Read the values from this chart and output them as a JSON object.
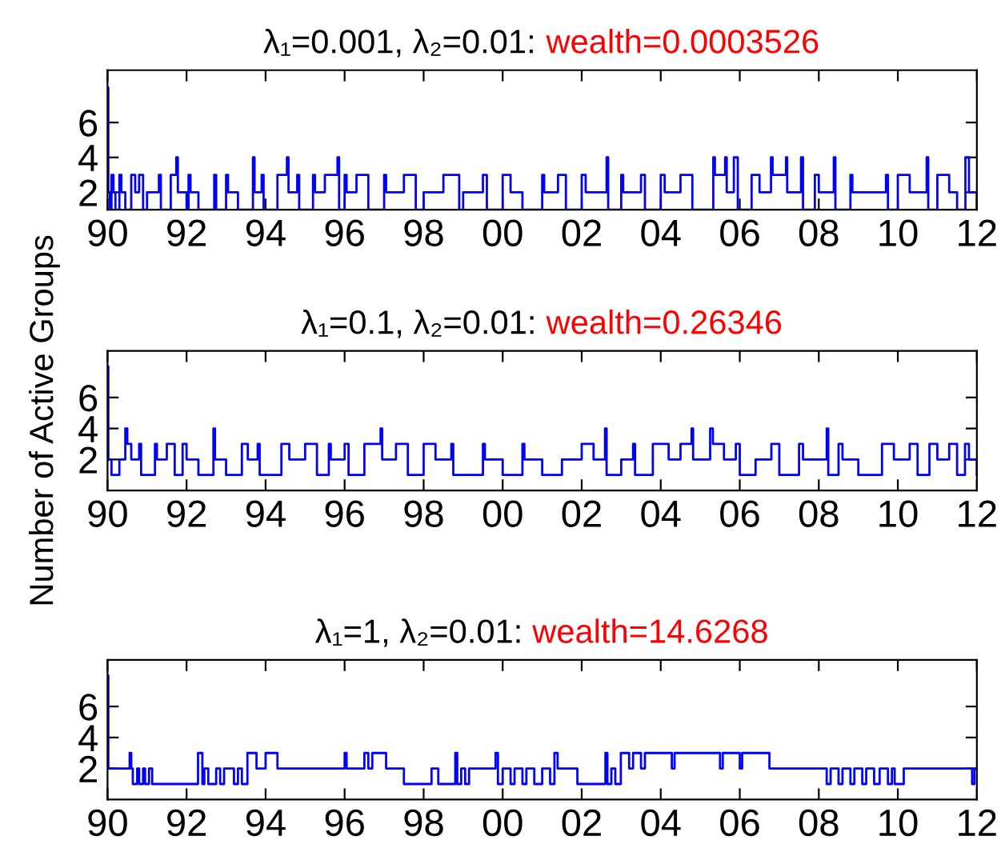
{
  "chart_data": [
    {
      "type": "step",
      "title": "λ₁=0.001, λ₂=0.01: ",
      "subtitle": "wealth=0.0003526",
      "xlim": [
        1990,
        2012
      ],
      "xticks": [
        {
          "value": 1990,
          "label": "90"
        },
        {
          "value": 1992,
          "label": "92"
        },
        {
          "value": 1994,
          "label": "94"
        },
        {
          "value": 1996,
          "label": "96"
        },
        {
          "value": 1998,
          "label": "98"
        },
        {
          "value": 2000,
          "label": "00"
        },
        {
          "value": 2002,
          "label": "02"
        },
        {
          "value": 2004,
          "label": "04"
        },
        {
          "value": 2006,
          "label": "06"
        },
        {
          "value": 2008,
          "label": "08"
        },
        {
          "value": 2010,
          "label": "10"
        },
        {
          "value": 2012,
          "label": "12"
        }
      ],
      "ylim": [
        1,
        9
      ],
      "yticks": [
        2,
        4,
        6
      ],
      "x": [
        1990,
        1990.02,
        1990.06,
        1990.1,
        1990.15,
        1990.2,
        1990.3,
        1990.35,
        1990.45,
        1990.6,
        1990.7,
        1990.8,
        1990.9,
        1991.0,
        1991.3,
        1991.35,
        1991.6,
        1991.74,
        1991.78,
        1992.0,
        1992.05,
        1992.1,
        1992.3,
        1992.7,
        1992.75,
        1993.0,
        1993.05,
        1993.3,
        1993.68,
        1993.72,
        1993.9,
        1993.95,
        1994.3,
        1994.54,
        1994.58,
        1994.8,
        1994.85,
        1995.2,
        1995.25,
        1995.5,
        1995.82,
        1995.86,
        1996.0,
        1996.05,
        1996.3,
        1996.6,
        1997.0,
        1997.05,
        1997.5,
        1997.8,
        1998.0,
        1998.5,
        1998.9,
        1999.0,
        1999.5,
        1999.6,
        2000.0,
        2000.2,
        2000.5,
        2001.0,
        2001.05,
        2001.4,
        2001.6,
        2002.0,
        2002.1,
        2002.63,
        2002.67,
        2003.0,
        2003.05,
        2003.5,
        2003.6,
        2004.0,
        2004.1,
        2004.5,
        2004.8,
        2005.33,
        2005.37,
        2005.63,
        2005.67,
        2005.85,
        2005.95,
        2006.3,
        2006.5,
        2006.79,
        2006.83,
        2007.17,
        2007.2,
        2007.55,
        2007.6,
        2007.9,
        2008.0,
        2008.38,
        2008.42,
        2008.8,
        2008.85,
        2009.7,
        2009.75,
        2010.0,
        2010.3,
        2010.73,
        2010.77,
        2011.0,
        2011.3,
        2011.5,
        2011.71,
        2011.8,
        2012
      ],
      "series": [
        {
          "color": "#0000ff",
          "values": [
            8,
            2,
            1,
            3,
            2,
            1,
            3,
            2,
            1,
            3,
            2,
            3,
            1,
            2,
            3,
            1,
            3,
            4,
            2,
            1,
            3,
            2,
            1,
            3,
            1,
            3,
            2,
            1,
            4,
            2,
            3,
            1,
            3,
            4,
            2,
            3,
            1,
            3,
            2,
            3,
            4,
            1,
            3,
            2,
            3,
            1,
            3,
            2,
            3,
            1,
            2,
            3,
            1,
            2,
            3,
            1,
            3,
            2,
            1,
            3,
            2,
            3,
            1,
            3,
            2,
            4,
            1,
            3,
            2,
            3,
            1,
            3,
            2,
            3,
            1,
            4,
            3,
            4,
            2,
            4,
            1,
            3,
            2,
            4,
            3,
            4,
            2,
            4,
            1,
            3,
            2,
            4,
            1,
            3,
            2,
            3,
            1,
            3,
            2,
            4,
            1,
            3,
            2,
            1,
            4,
            2,
            1
          ]
        }
      ]
    },
    {
      "type": "step",
      "title": "λ₁=0.1, λ₂=0.01: ",
      "subtitle": "wealth=0.26346",
      "ylabel": "Number of Active Groups",
      "xlim": [
        1990,
        2012
      ],
      "xticks": [
        {
          "value": 1990,
          "label": "90"
        },
        {
          "value": 1992,
          "label": "92"
        },
        {
          "value": 1994,
          "label": "94"
        },
        {
          "value": 1996,
          "label": "96"
        },
        {
          "value": 1998,
          "label": "98"
        },
        {
          "value": 2000,
          "label": "00"
        },
        {
          "value": 2002,
          "label": "02"
        },
        {
          "value": 2004,
          "label": "04"
        },
        {
          "value": 2006,
          "label": "06"
        },
        {
          "value": 2008,
          "label": "08"
        },
        {
          "value": 2010,
          "label": "10"
        },
        {
          "value": 2012,
          "label": "12"
        }
      ],
      "ylim": [
        0,
        9
      ],
      "yticks": [
        2,
        4,
        6
      ],
      "x": [
        1990,
        1990.02,
        1990.1,
        1990.3,
        1990.45,
        1990.5,
        1990.6,
        1990.8,
        1990.85,
        1991.2,
        1991.25,
        1991.5,
        1991.7,
        1991.9,
        1992.0,
        1992.3,
        1992.68,
        1992.72,
        1993.0,
        1993.4,
        1993.55,
        1993.8,
        1993.85,
        1994.4,
        1994.6,
        1995.0,
        1995.3,
        1995.6,
        1995.65,
        1996.0,
        1996.1,
        1996.5,
        1996.91,
        1996.95,
        1997.3,
        1997.6,
        1998.0,
        1998.3,
        1998.7,
        1998.75,
        1999.5,
        1999.55,
        2000.0,
        2000.5,
        2000.55,
        2001.0,
        2001.5,
        2002.0,
        2002.3,
        2002.59,
        2002.63,
        2003.0,
        2003.3,
        2003.35,
        2003.8,
        2004.2,
        2004.5,
        2004.78,
        2004.82,
        2005.25,
        2005.32,
        2005.6,
        2005.9,
        2006.0,
        2006.4,
        2006.8,
        2007.0,
        2007.5,
        2007.6,
        2008.2,
        2008.24,
        2008.5,
        2008.6,
        2009.0,
        2009.6,
        2009.9,
        2010.3,
        2010.5,
        2010.8,
        2011.0,
        2011.3,
        2011.5,
        2011.7,
        2011.8,
        2012
      ],
      "series": [
        {
          "color": "#0000ff",
          "values": [
            8,
            2,
            1,
            2,
            4,
            3,
            2,
            3,
            1,
            3,
            2,
            3,
            1,
            3,
            2,
            1,
            4,
            2,
            1,
            3,
            2,
            3,
            1,
            3,
            2,
            3,
            1,
            3,
            2,
            3,
            1,
            3,
            4,
            2,
            3,
            1,
            3,
            2,
            3,
            1,
            3,
            2,
            1,
            3,
            2,
            1,
            2,
            3,
            2,
            4,
            1,
            2,
            3,
            1,
            3,
            2,
            3,
            4,
            2,
            4,
            3,
            2,
            3,
            1,
            2,
            3,
            1,
            3,
            2,
            4,
            1,
            3,
            2,
            1,
            3,
            2,
            3,
            1,
            3,
            2,
            3,
            1,
            3,
            2,
            1
          ]
        }
      ]
    },
    {
      "type": "step",
      "title": "λ₁=1, λ₂=0.01: ",
      "subtitle": "wealth=14.6268",
      "xlim": [
        1990,
        2012
      ],
      "xticks": [
        {
          "value": 1990,
          "label": "90"
        },
        {
          "value": 1992,
          "label": "92"
        },
        {
          "value": 1994,
          "label": "94"
        },
        {
          "value": 1996,
          "label": "96"
        },
        {
          "value": 1998,
          "label": "98"
        },
        {
          "value": 2000,
          "label": "00"
        },
        {
          "value": 2002,
          "label": "02"
        },
        {
          "value": 2004,
          "label": "04"
        },
        {
          "value": 2006,
          "label": "06"
        },
        {
          "value": 2008,
          "label": "08"
        },
        {
          "value": 2010,
          "label": "10"
        },
        {
          "value": 2012,
          "label": "12"
        }
      ],
      "ylim": [
        0,
        9
      ],
      "yticks": [
        2,
        4,
        6
      ],
      "x": [
        1990,
        1990.02,
        1990.56,
        1990.6,
        1990.64,
        1990.75,
        1990.8,
        1990.9,
        1990.95,
        1991.05,
        1991.13,
        1992.29,
        1992.4,
        1992.45,
        1992.55,
        1992.75,
        1992.85,
        1992.95,
        1993.2,
        1993.3,
        1993.4,
        1993.54,
        1993.77,
        1994.0,
        1994.3,
        1996.0,
        1996.05,
        1996.5,
        1996.6,
        1996.7,
        1997.05,
        1997.5,
        1998.2,
        1998.37,
        1998.8,
        1998.85,
        1998.95,
        1999.05,
        1999.15,
        1999.3,
        1999.82,
        1999.88,
        2000.0,
        2000.2,
        2000.3,
        2000.5,
        2000.6,
        2000.8,
        2001.0,
        2001.2,
        2001.31,
        2001.39,
        2001.89,
        2002.6,
        2002.65,
        2002.75,
        2002.85,
        2002.99,
        2003.2,
        2003.3,
        2003.5,
        2003.6,
        2004.28,
        2004.35,
        2005.5,
        2005.57,
        2006.0,
        2006.06,
        2006.75,
        2008.2,
        2008.3,
        2008.5,
        2008.6,
        2008.8,
        2008.9,
        2009.1,
        2009.2,
        2009.4,
        2009.54,
        2009.75,
        2009.85,
        2009.92,
        2010.15,
        2011.88,
        2011.94,
        2012
      ],
      "series": [
        {
          "color": "#0000ff",
          "values": [
            8,
            2,
            3,
            2,
            1,
            2,
            1,
            2,
            1,
            2,
            1,
            3,
            1,
            2,
            1,
            2,
            1,
            2,
            1,
            2,
            1,
            3,
            2,
            3,
            2,
            3,
            2,
            3,
            2,
            3,
            2,
            1,
            2,
            1,
            3,
            1,
            2,
            1,
            2,
            2,
            3,
            1,
            2,
            1,
            2,
            1,
            2,
            1,
            2,
            1,
            3,
            2,
            1,
            3,
            1,
            2,
            1,
            3,
            2,
            3,
            2,
            3,
            2,
            3,
            2,
            3,
            2,
            3,
            2,
            1,
            2,
            1,
            2,
            1,
            2,
            1,
            2,
            1,
            2,
            1,
            2,
            1,
            2,
            1,
            2,
            2
          ]
        }
      ]
    }
  ]
}
